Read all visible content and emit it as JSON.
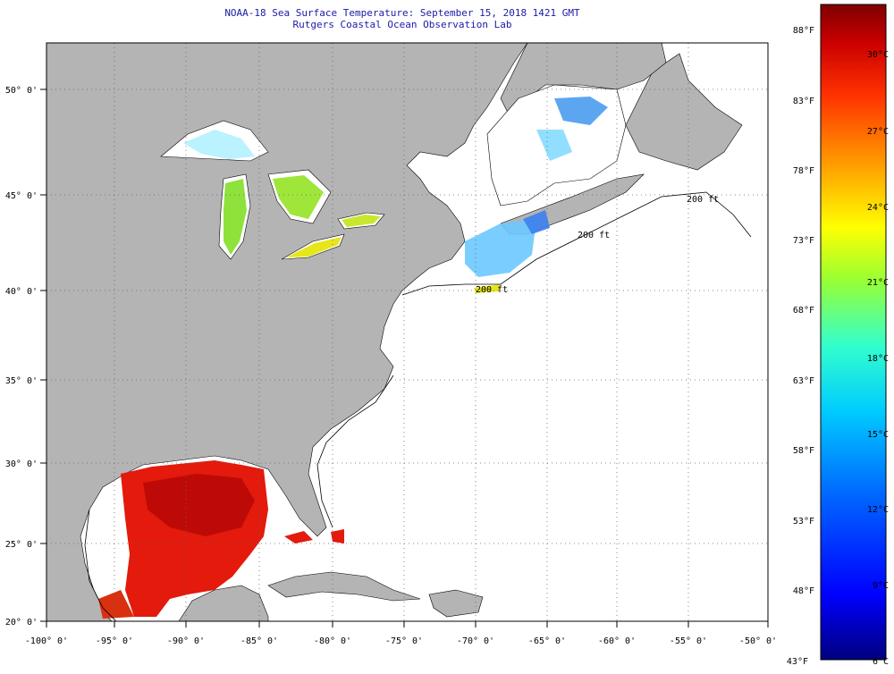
{
  "header": {
    "line1": "NOAA-18 Sea Surface Temperature:  September 15, 2018 1421 GMT",
    "line2": "Rutgers Coastal Ocean Observation Lab"
  },
  "map": {
    "lon_ticks": [
      "-100° 0'",
      "-95° 0'",
      "-90° 0'",
      "-85° 0'",
      "-80° 0'",
      "-75° 0'",
      "-70° 0'",
      "-65° 0'",
      "-60° 0'",
      "-55° 0'",
      "-50° 0'"
    ],
    "lat_ticks": [
      "50° 0'",
      "45° 0'",
      "40° 0'",
      "35° 0'",
      "30° 0'",
      "25° 0'",
      "20° 0'"
    ],
    "contour_labels": [
      "200 ft",
      "200 ft",
      "200 ft"
    ],
    "land_color": "#b4b4b4",
    "water_color": "#ffffff"
  },
  "colorbar": {
    "fahrenheit": [
      "88°F",
      "83°F",
      "78°F",
      "73°F",
      "68°F",
      "63°F",
      "58°F",
      "53°F",
      "48°F",
      "43°F"
    ],
    "celsius": [
      "30°C",
      "27°C",
      "24°C",
      "21°C",
      "18°C",
      "15°C",
      "12°C",
      "9°C",
      "6°C"
    ],
    "colors": [
      "#00007f",
      "#0000ff",
      "#0066ff",
      "#00ccff",
      "#33ffcc",
      "#99ff33",
      "#ffff00",
      "#ff9900",
      "#ff3300",
      "#cc0000",
      "#7f0000"
    ]
  }
}
